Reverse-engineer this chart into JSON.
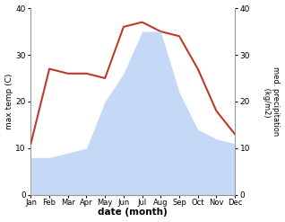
{
  "months": [
    "Jan",
    "Feb",
    "Mar",
    "Apr",
    "May",
    "Jun",
    "Jul",
    "Aug",
    "Sep",
    "Oct",
    "Nov",
    "Dec"
  ],
  "temperature": [
    11,
    27,
    26,
    26,
    25,
    36,
    37,
    35,
    34,
    27,
    18,
    13
  ],
  "precipitation": [
    8,
    8,
    9,
    10,
    20,
    26,
    35,
    35,
    22,
    14,
    12,
    11
  ],
  "temp_color": "#c0392b",
  "precip_fill_color": "#c5d8f5",
  "ylim": [
    0,
    40
  ],
  "yticks": [
    0,
    10,
    20,
    30,
    40
  ],
  "xlabel": "date (month)",
  "ylabel_left": "max temp (C)",
  "ylabel_right": "med. precipitation\n (kg/m2)",
  "background_color": "#ffffff"
}
